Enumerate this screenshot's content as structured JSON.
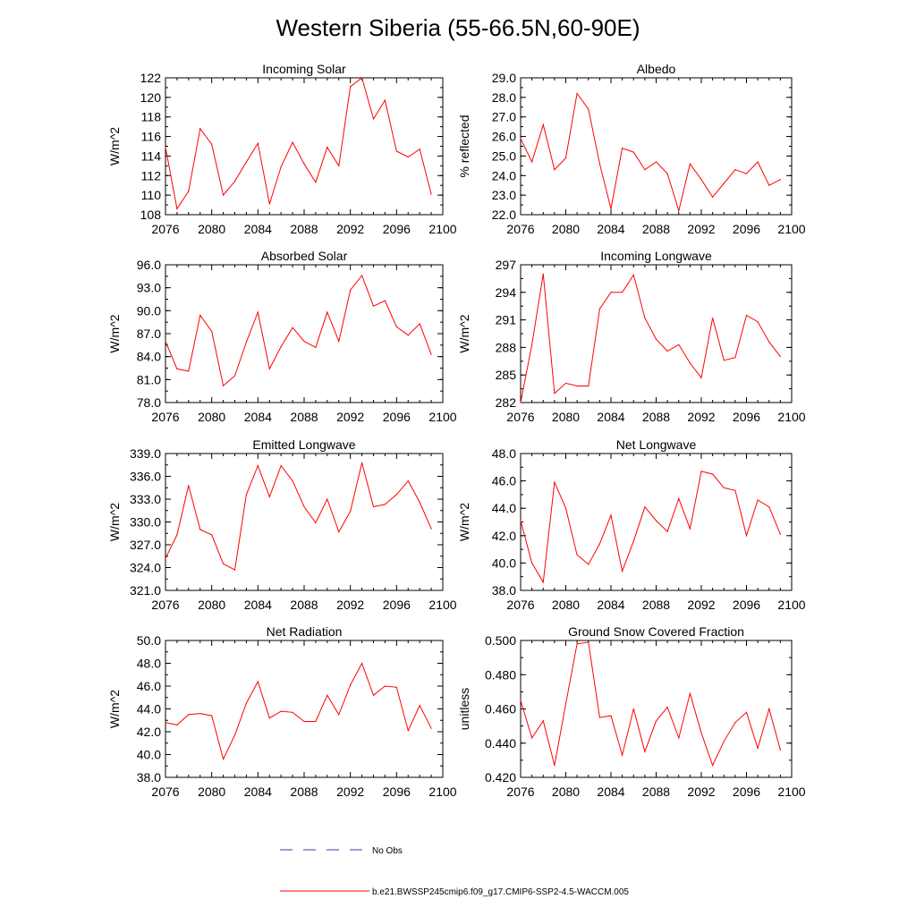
{
  "figure": {
    "title": "Western Siberia (55-66.5N,60-90E)",
    "legend": [
      {
        "label": "No Obs",
        "color": "#3a3aa0",
        "style": "dashed"
      },
      {
        "label": "b.e21.BWSSP245cmip6.f09_g17.CMIP6-SSP2-4.5-WACCM.005",
        "color": "#ff0000",
        "style": "solid"
      }
    ]
  },
  "chart_data": [
    {
      "type": "line",
      "title": "Incoming Solar",
      "ylabel": "W/m^2",
      "xlim": [
        2076,
        2100
      ],
      "ylim": [
        108,
        122
      ],
      "xticks": [
        "2076",
        "2080",
        "2084",
        "2088",
        "2092",
        "2096",
        "2100"
      ],
      "yticks": [
        "108",
        "110",
        "112",
        "114",
        "116",
        "118",
        "120",
        "122"
      ],
      "series": [
        {
          "name": "b.e21.BWSSP245cmip6.f09_g17.CMIP6-SSP2-4.5-WACCM.005",
          "color": "#ff0000",
          "x": [
            2076,
            2077,
            2078,
            2079,
            2080,
            2081,
            2082,
            2083,
            2084,
            2085,
            2086,
            2087,
            2088,
            2089,
            2090,
            2091,
            2092,
            2093,
            2094,
            2095,
            2096,
            2097,
            2098,
            2099
          ],
          "values": [
            114.9,
            108.6,
            110.4,
            116.8,
            115.2,
            110.0,
            111.4,
            113.4,
            115.3,
            109.1,
            112.9,
            115.4,
            113.2,
            111.3,
            114.9,
            113.0,
            121.1,
            122.0,
            117.8,
            119.7,
            114.5,
            113.9,
            114.7,
            110.1
          ]
        }
      ]
    },
    {
      "type": "line",
      "title": "Albedo",
      "ylabel": "% reflected",
      "xlim": [
        2076,
        2100
      ],
      "ylim": [
        22,
        29
      ],
      "xticks": [
        "2076",
        "2080",
        "2084",
        "2088",
        "2092",
        "2096",
        "2100"
      ],
      "yticks": [
        "22.0",
        "23.0",
        "24.0",
        "25.0",
        "26.0",
        "27.0",
        "28.0",
        "29.0"
      ],
      "series": [
        {
          "name": "b.e21.BWSSP245cmip6.f09_g17.CMIP6-SSP2-4.5-WACCM.005",
          "color": "#ff0000",
          "x": [
            2076,
            2077,
            2078,
            2079,
            2080,
            2081,
            2082,
            2083,
            2084,
            2085,
            2086,
            2087,
            2088,
            2089,
            2090,
            2091,
            2092,
            2093,
            2094,
            2095,
            2096,
            2097,
            2098,
            2099
          ],
          "values": [
            25.9,
            24.7,
            26.6,
            24.3,
            24.9,
            28.2,
            27.4,
            24.6,
            22.3,
            25.4,
            25.2,
            24.3,
            24.7,
            24.1,
            22.2,
            24.6,
            23.8,
            22.9,
            23.6,
            24.3,
            24.1,
            24.7,
            23.5,
            23.8
          ]
        }
      ]
    },
    {
      "type": "line",
      "title": "Absorbed Solar",
      "ylabel": "W/m^2",
      "xlim": [
        2076,
        2100
      ],
      "ylim": [
        78,
        96
      ],
      "xticks": [
        "2076",
        "2080",
        "2084",
        "2088",
        "2092",
        "2096",
        "2100"
      ],
      "yticks": [
        "78.0",
        "81.0",
        "84.0",
        "87.0",
        "90.0",
        "93.0",
        "96.0"
      ],
      "series": [
        {
          "name": "b.e21.BWSSP245cmip6.f09_g17.CMIP6-SSP2-4.5-WACCM.005",
          "color": "#ff0000",
          "x": [
            2076,
            2077,
            2078,
            2079,
            2080,
            2081,
            2082,
            2083,
            2084,
            2085,
            2086,
            2087,
            2088,
            2089,
            2090,
            2091,
            2092,
            2093,
            2094,
            2095,
            2096,
            2097,
            2098,
            2099
          ],
          "values": [
            86.0,
            82.4,
            82.1,
            89.4,
            87.3,
            80.2,
            81.5,
            85.9,
            89.8,
            82.4,
            85.3,
            87.8,
            86.0,
            85.2,
            89.8,
            86.0,
            92.7,
            94.6,
            90.6,
            91.3,
            87.9,
            86.8,
            88.3,
            84.3
          ]
        }
      ]
    },
    {
      "type": "line",
      "title": "Incoming Longwave",
      "ylabel": "W/m^2",
      "xlim": [
        2076,
        2100
      ],
      "ylim": [
        282,
        297
      ],
      "xticks": [
        "2076",
        "2080",
        "2084",
        "2088",
        "2092",
        "2096",
        "2100"
      ],
      "yticks": [
        "282",
        "285",
        "288",
        "291",
        "294",
        "297"
      ],
      "series": [
        {
          "name": "b.e21.BWSSP245cmip6.f09_g17.CMIP6-SSP2-4.5-WACCM.005",
          "color": "#ff0000",
          "x": [
            2076,
            2077,
            2078,
            2079,
            2080,
            2081,
            2082,
            2083,
            2084,
            2085,
            2086,
            2087,
            2088,
            2089,
            2090,
            2091,
            2092,
            2093,
            2094,
            2095,
            2096,
            2097,
            2098,
            2099
          ],
          "values": [
            282.0,
            288.3,
            296.0,
            283.0,
            284.1,
            283.8,
            283.8,
            292.2,
            294.0,
            294.0,
            295.9,
            291.2,
            288.9,
            287.6,
            288.3,
            286.3,
            284.7,
            291.2,
            286.6,
            286.9,
            291.5,
            290.8,
            288.6,
            287.0
          ]
        }
      ]
    },
    {
      "type": "line",
      "title": "Emitted Longwave",
      "ylabel": "W/m^2",
      "xlim": [
        2076,
        2100
      ],
      "ylim": [
        321,
        339
      ],
      "xticks": [
        "2076",
        "2080",
        "2084",
        "2088",
        "2092",
        "2096",
        "2100"
      ],
      "yticks": [
        "321.0",
        "324.0",
        "327.0",
        "330.0",
        "333.0",
        "336.0",
        "339.0"
      ],
      "series": [
        {
          "name": "b.e21.BWSSP245cmip6.f09_g17.CMIP6-SSP2-4.5-WACCM.005",
          "color": "#ff0000",
          "x": [
            2076,
            2077,
            2078,
            2079,
            2080,
            2081,
            2082,
            2083,
            2084,
            2085,
            2086,
            2087,
            2088,
            2089,
            2090,
            2091,
            2092,
            2093,
            2094,
            2095,
            2096,
            2097,
            2098,
            2099
          ],
          "values": [
            325.2,
            328.3,
            334.8,
            329.0,
            328.3,
            324.5,
            323.7,
            333.6,
            337.4,
            333.3,
            337.4,
            335.4,
            332.0,
            329.9,
            333.0,
            328.7,
            331.4,
            337.8,
            332.0,
            332.3,
            333.6,
            335.4,
            332.6,
            329.1
          ]
        }
      ]
    },
    {
      "type": "line",
      "title": "Net Longwave",
      "ylabel": "W/m^2",
      "xlim": [
        2076,
        2100
      ],
      "ylim": [
        38,
        48
      ],
      "xticks": [
        "2076",
        "2080",
        "2084",
        "2088",
        "2092",
        "2096",
        "2100"
      ],
      "yticks": [
        "38.0",
        "40.0",
        "42.0",
        "44.0",
        "46.0",
        "48.0"
      ],
      "series": [
        {
          "name": "b.e21.BWSSP245cmip6.f09_g17.CMIP6-SSP2-4.5-WACCM.005",
          "color": "#ff0000",
          "x": [
            2076,
            2077,
            2078,
            2079,
            2080,
            2081,
            2082,
            2083,
            2084,
            2085,
            2086,
            2087,
            2088,
            2089,
            2090,
            2091,
            2092,
            2093,
            2094,
            2095,
            2096,
            2097,
            2098,
            2099
          ],
          "values": [
            43.1,
            40.0,
            38.6,
            45.9,
            44.0,
            40.6,
            39.9,
            41.4,
            43.5,
            39.4,
            41.6,
            44.1,
            43.1,
            42.3,
            44.7,
            42.5,
            46.7,
            46.5,
            45.5,
            45.3,
            42.0,
            44.6,
            44.1,
            42.1
          ]
        }
      ]
    },
    {
      "type": "line",
      "title": "Net Radiation",
      "ylabel": "W/m^2",
      "xlim": [
        2076,
        2100
      ],
      "ylim": [
        38,
        50
      ],
      "xticks": [
        "2076",
        "2080",
        "2084",
        "2088",
        "2092",
        "2096",
        "2100"
      ],
      "yticks": [
        "38.0",
        "40.0",
        "42.0",
        "44.0",
        "46.0",
        "48.0",
        "50.0"
      ],
      "series": [
        {
          "name": "b.e21.BWSSP245cmip6.f09_g17.CMIP6-SSP2-4.5-WACCM.005",
          "color": "#ff0000",
          "x": [
            2076,
            2077,
            2078,
            2079,
            2080,
            2081,
            2082,
            2083,
            2084,
            2085,
            2086,
            2087,
            2088,
            2089,
            2090,
            2091,
            2092,
            2093,
            2094,
            2095,
            2096,
            2097,
            2098,
            2099
          ],
          "values": [
            42.8,
            42.6,
            43.5,
            43.6,
            43.4,
            39.6,
            41.7,
            44.5,
            46.4,
            43.2,
            43.8,
            43.7,
            42.9,
            42.9,
            45.2,
            43.5,
            46.1,
            48.0,
            45.2,
            46.0,
            45.9,
            42.1,
            44.3,
            42.3
          ]
        }
      ]
    },
    {
      "type": "line",
      "title": "Ground Snow Covered Fraction",
      "ylabel": "unitless",
      "xlim": [
        2076,
        2100
      ],
      "ylim": [
        0.42,
        0.5
      ],
      "xticks": [
        "2076",
        "2080",
        "2084",
        "2088",
        "2092",
        "2096",
        "2100"
      ],
      "yticks": [
        "0.420",
        "0.440",
        "0.460",
        "0.480",
        "0.500"
      ],
      "series": [
        {
          "name": "b.e21.BWSSP245cmip6.f09_g17.CMIP6-SSP2-4.5-WACCM.005",
          "color": "#ff0000",
          "x": [
            2076,
            2077,
            2078,
            2079,
            2080,
            2081,
            2082,
            2083,
            2084,
            2085,
            2086,
            2087,
            2088,
            2089,
            2090,
            2091,
            2092,
            2093,
            2094,
            2095,
            2096,
            2097,
            2098,
            2099
          ],
          "values": [
            0.465,
            0.443,
            0.453,
            0.427,
            0.463,
            0.498,
            0.499,
            0.455,
            0.456,
            0.433,
            0.46,
            0.435,
            0.453,
            0.461,
            0.443,
            0.469,
            0.446,
            0.427,
            0.441,
            0.452,
            0.458,
            0.437,
            0.46,
            0.436
          ]
        }
      ]
    }
  ]
}
